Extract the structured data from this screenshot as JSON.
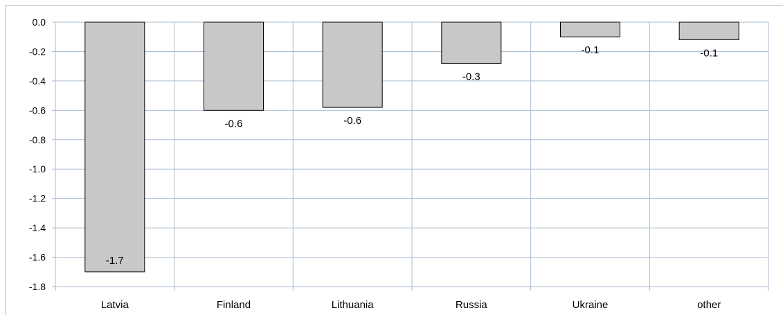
{
  "chart_data": {
    "type": "bar",
    "categories": [
      "Latvia",
      "Finland",
      "Lithuania",
      "Russia",
      "Ukraine",
      "other"
    ],
    "values": [
      -1.7,
      -0.6,
      -0.58,
      -0.28,
      -0.1,
      -0.12
    ],
    "data_labels": [
      "-1.7",
      "-0.6",
      "-0.6",
      "-0.3",
      "-0.1",
      "-0.1"
    ],
    "yticks": [
      "0.0",
      "-0.2",
      "-0.4",
      "-0.6",
      "-0.8",
      "-1.0",
      "-1.2",
      "-1.4",
      "-1.6",
      "-1.8"
    ],
    "ylim": [
      -1.8,
      0.0
    ],
    "grid": true,
    "bar_color": "#c8c8c8",
    "grid_color": "#a9bccf",
    "title": "",
    "xlabel": "",
    "ylabel": ""
  }
}
